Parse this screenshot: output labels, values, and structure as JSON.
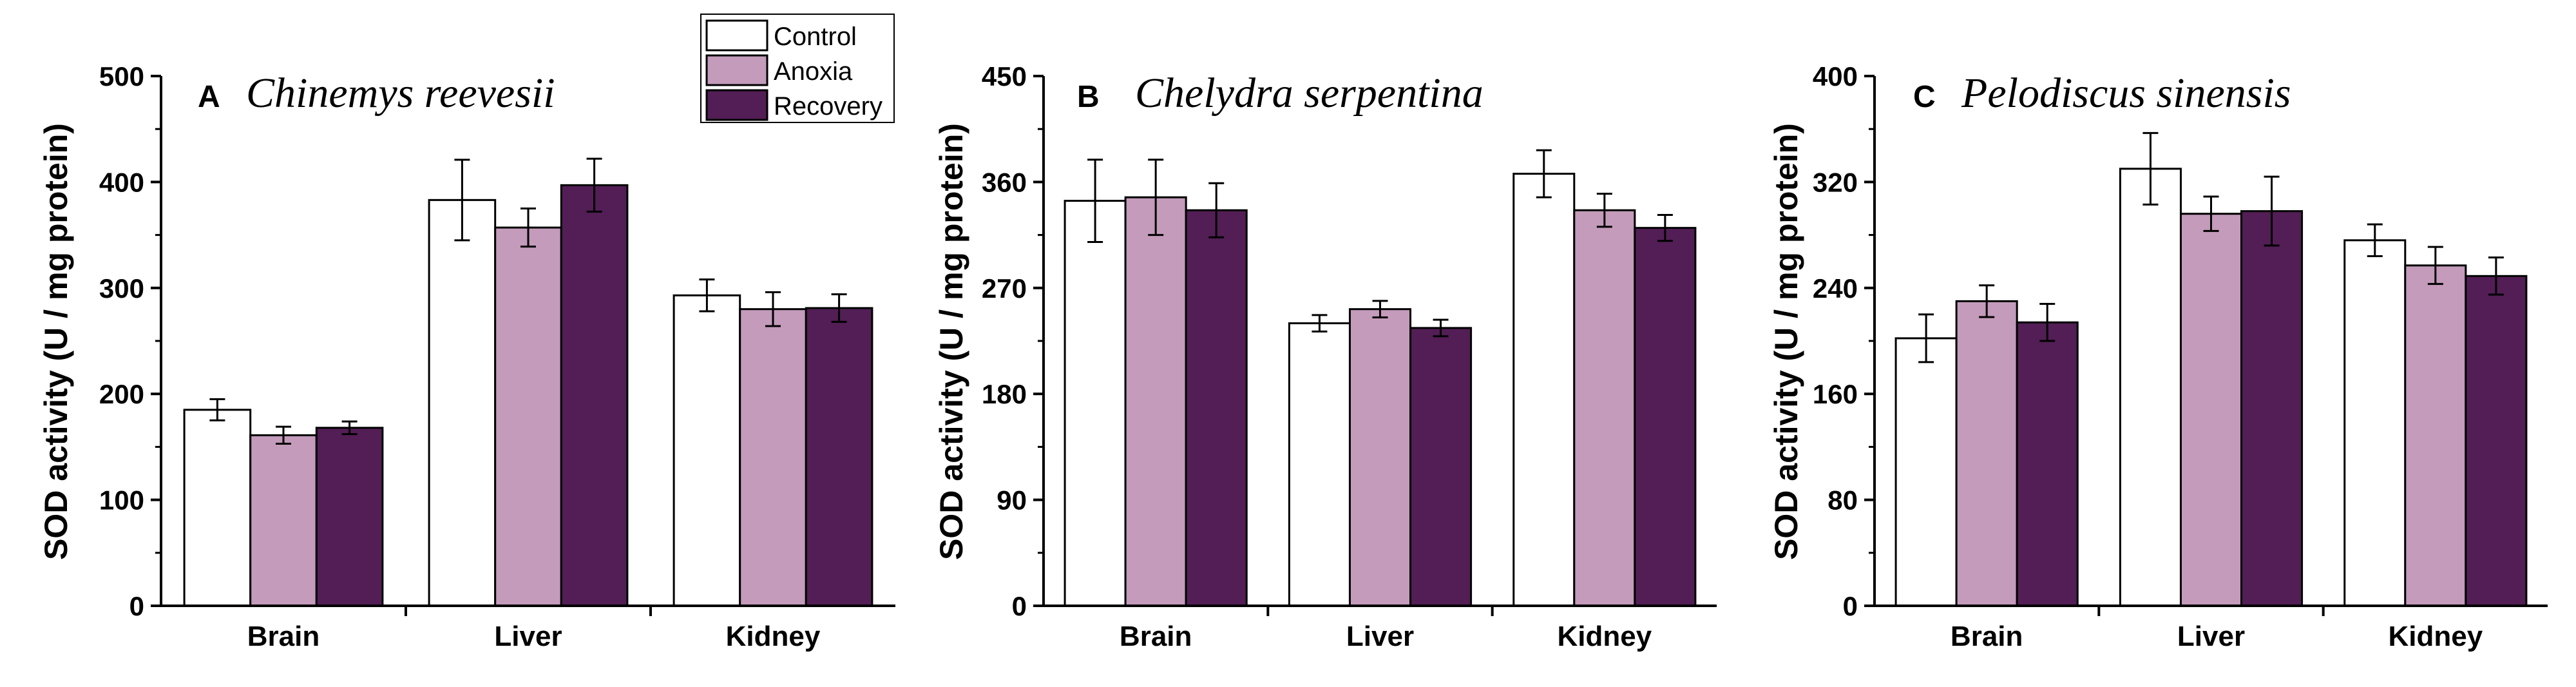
{
  "colors": {
    "control": "#ffffff",
    "anoxia": "#c49bbb",
    "recovery": "#521e55",
    "stroke": "#000000"
  },
  "legend": {
    "entries": [
      "Control",
      "Anoxia",
      "Recovery"
    ]
  },
  "chart_data": [
    {
      "type": "bar",
      "panel_letter": "A",
      "title": "Chinemys reevesii",
      "xlabel": "",
      "ylabel": "SOD activity (U / mg protein)",
      "categories": [
        "Brain",
        "Liver",
        "Kidney"
      ],
      "ylim": [
        0,
        500
      ],
      "yticks": [
        0,
        100,
        200,
        300,
        400,
        500
      ],
      "series": [
        {
          "name": "Control",
          "values": [
            185,
            383,
            293
          ],
          "errors": [
            10,
            38,
            15
          ]
        },
        {
          "name": "Anoxia",
          "values": [
            161,
            357,
            280
          ],
          "errors": [
            8,
            18,
            16
          ]
        },
        {
          "name": "Recovery",
          "values": [
            168,
            397,
            281
          ],
          "errors": [
            6,
            25,
            13
          ]
        }
      ]
    },
    {
      "type": "bar",
      "panel_letter": "B",
      "title": "Chelydra serpentina",
      "xlabel": "",
      "ylabel": "SOD activity (U / mg protein)",
      "categories": [
        "Brain",
        "Liver",
        "Kidney"
      ],
      "ylim": [
        0,
        450
      ],
      "yticks": [
        0,
        90,
        180,
        270,
        360,
        450
      ],
      "series": [
        {
          "name": "Control",
          "values": [
            344,
            240,
            367
          ],
          "errors": [
            35,
            7,
            20
          ]
        },
        {
          "name": "Anoxia",
          "values": [
            347,
            252,
            336
          ],
          "errors": [
            32,
            7,
            14
          ]
        },
        {
          "name": "Recovery",
          "values": [
            336,
            236,
            321
          ],
          "errors": [
            23,
            7,
            11
          ]
        }
      ]
    },
    {
      "type": "bar",
      "panel_letter": "C",
      "title": "Pelodiscus sinensis",
      "xlabel": "",
      "ylabel": "SOD activity (U / mg protein)",
      "categories": [
        "Brain",
        "Liver",
        "Kidney"
      ],
      "ylim": [
        0,
        400
      ],
      "yticks": [
        0,
        80,
        160,
        240,
        320,
        400
      ],
      "series": [
        {
          "name": "Control",
          "values": [
            202,
            330,
            276
          ],
          "errors": [
            18,
            27,
            12
          ]
        },
        {
          "name": "Anoxia",
          "values": [
            230,
            296,
            257
          ],
          "errors": [
            12,
            13,
            14
          ]
        },
        {
          "name": "Recovery",
          "values": [
            214,
            298,
            249
          ],
          "errors": [
            14,
            26,
            14
          ]
        }
      ]
    }
  ]
}
